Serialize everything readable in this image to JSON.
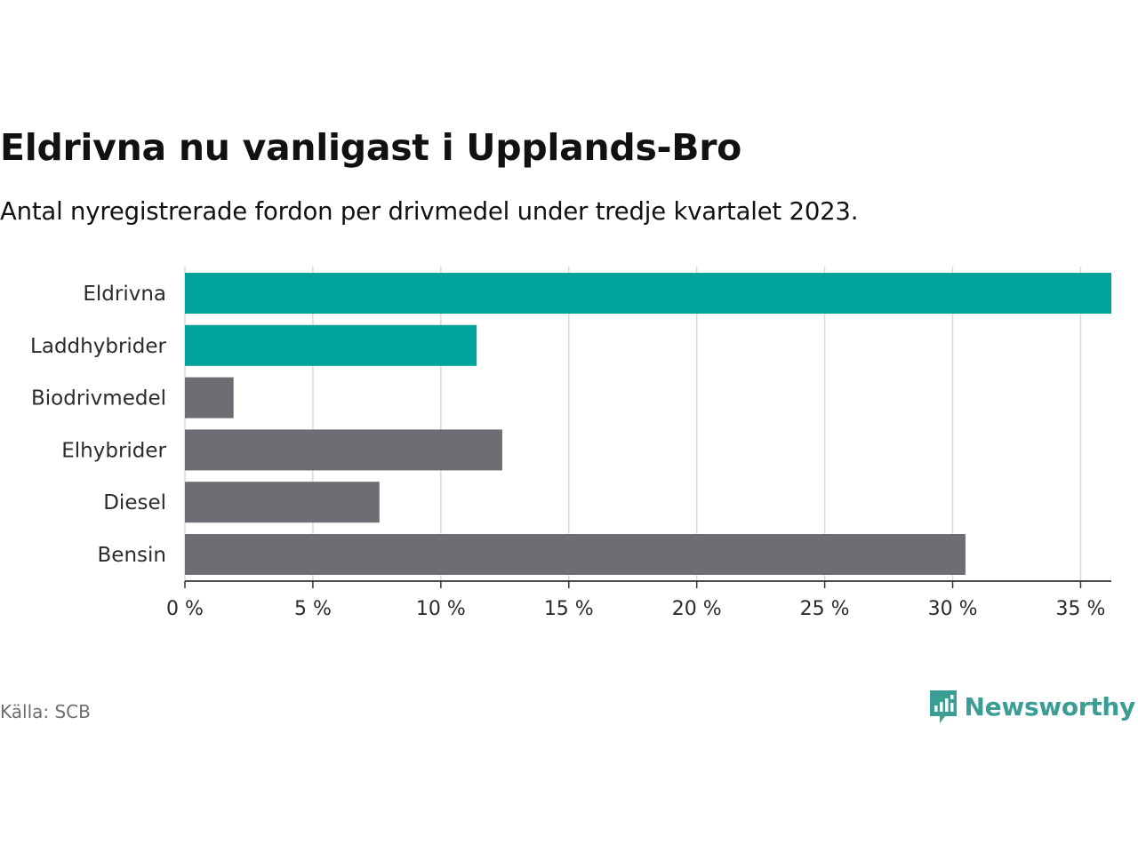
{
  "title": "Eldrivna nu vanligast i Upplands-Bro",
  "subtitle": "Antal nyregistrerade fordon per drivmedel under tredje kvartalet 2023.",
  "source": "Källa: SCB",
  "brand": "Newsworthy",
  "colors": {
    "highlight": "#00a39a",
    "neutral": "#6e6d73",
    "brand": "#3a9e95"
  },
  "chart_data": {
    "type": "bar",
    "orientation": "horizontal",
    "categories": [
      "Eldrivna",
      "Laddhybrider",
      "Biodrivmedel",
      "Elhybrider",
      "Diesel",
      "Bensin"
    ],
    "values": [
      36.2,
      11.4,
      1.9,
      12.4,
      7.6,
      30.5
    ],
    "highlight": [
      true,
      true,
      false,
      false,
      false,
      false
    ],
    "xlim": [
      0,
      36.2
    ],
    "ticks": [
      0,
      5,
      10,
      15,
      20,
      25,
      30,
      35
    ],
    "tick_labels": [
      "0 %",
      "5 %",
      "10 %",
      "15 %",
      "20 %",
      "25 %",
      "30 %",
      "35 %"
    ],
    "grid": true,
    "unit": "%"
  }
}
